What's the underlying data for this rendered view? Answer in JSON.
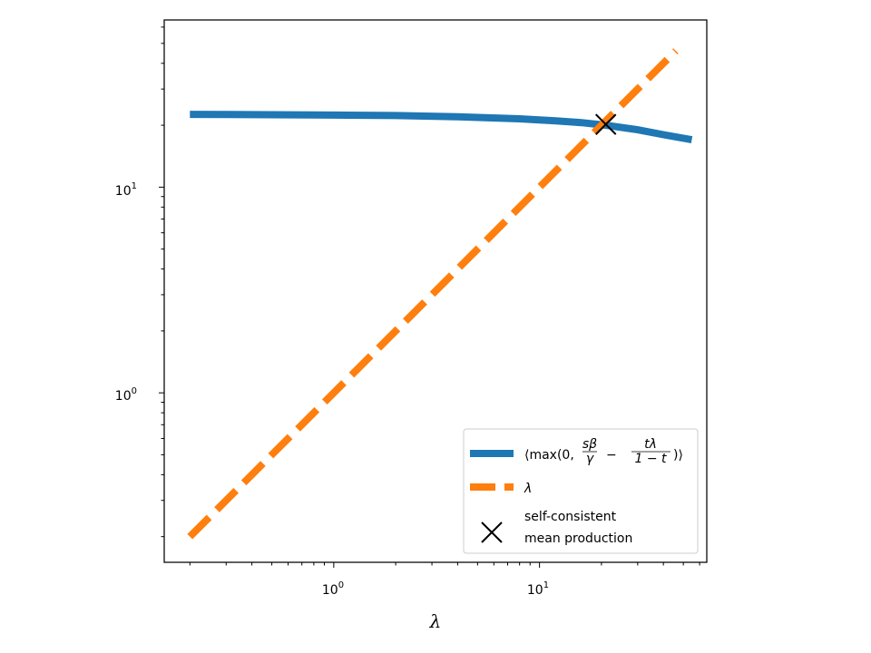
{
  "chart_data": {
    "type": "line",
    "xlabel": "λ",
    "ylabel": "",
    "x_scale": "log",
    "y_scale": "log",
    "xlim": [
      0.15,
      65
    ],
    "ylim": [
      0.15,
      65
    ],
    "x_major_ticks": [
      1,
      10
    ],
    "y_major_ticks": [
      1,
      10
    ],
    "x_tick_labels": [
      "10",
      "10"
    ],
    "x_tick_exponents": [
      "0",
      "1"
    ],
    "y_tick_labels": [
      "10",
      "10"
    ],
    "y_tick_exponents": [
      "0",
      "1"
    ],
    "grid": false,
    "legend_position": "lower-right",
    "series": [
      {
        "name": "⟨max(0, sβ/γ − tλ/(1−t))⟩",
        "color": "#1f77b4",
        "style": "solid",
        "x": [
          0.2,
          0.5,
          1,
          2,
          4,
          8,
          12,
          16,
          21,
          30,
          40,
          55
        ],
        "y": [
          22.6,
          22.5,
          22.4,
          22.3,
          22.0,
          21.5,
          21.0,
          20.6,
          20.0,
          19.0,
          18.0,
          17.0
        ]
      },
      {
        "name": "λ",
        "color": "#ff7f0e",
        "style": "dashed",
        "x": [
          0.2,
          46
        ],
        "y": [
          0.2,
          46
        ]
      }
    ],
    "markers": [
      {
        "name": "self-consistent mean production",
        "label_line1": "self-consistent",
        "label_line2": "mean production",
        "x": 21,
        "y": 20.2,
        "symbol": "x",
        "color": "#000000"
      }
    ]
  }
}
